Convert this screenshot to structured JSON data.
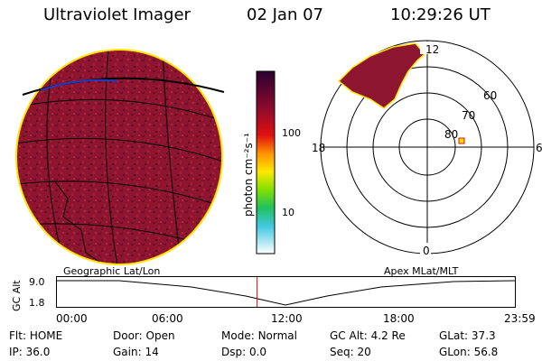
{
  "header": {
    "title": "Ultraviolet Imager",
    "date": "02 Jan 07",
    "time": "10:29:26 UT"
  },
  "colorbar": {
    "unit_label": "photon cm⁻²s⁻¹",
    "ticks": [
      "100",
      "10"
    ]
  },
  "polar": {
    "lat_labels": [
      "60",
      "70",
      "80"
    ],
    "mlt_labels": {
      "top": "12",
      "left": "18",
      "right": "6",
      "bottom": "0"
    }
  },
  "strip": {
    "left_label": "Geographic Lat/Lon",
    "right_label": "Apex MLat/MLT",
    "axis_label": "GC Alt",
    "y_ticks": [
      "9.0",
      "1.8"
    ],
    "x_ticks": [
      "00:00",
      "06:00",
      "12:00",
      "18:00",
      "23:59"
    ],
    "current_time_fraction": 0.437
  },
  "status": {
    "rows": [
      [
        {
          "key": "Flt:",
          "val": "HOME"
        },
        {
          "key": "Door:",
          "val": "Open"
        },
        {
          "key": "Mode:",
          "val": "Normal"
        },
        {
          "key": "GC Alt:",
          "val": "4.2 Re"
        },
        {
          "key": "GLat:",
          "val": "37.3"
        }
      ],
      [
        {
          "key": "IP:",
          "val": "36.0"
        },
        {
          "key": "Gain:",
          "val": "14"
        },
        {
          "key": "Dsp:",
          "val": "0.0"
        },
        {
          "key": "Seq:",
          "val": "20"
        },
        {
          "key": "GLon:",
          "val": "56.8"
        }
      ]
    ]
  },
  "colors": {
    "image_fill": "#8e1530",
    "image_edge": "#ffe400",
    "colorbar_top": "#2b0030"
  }
}
